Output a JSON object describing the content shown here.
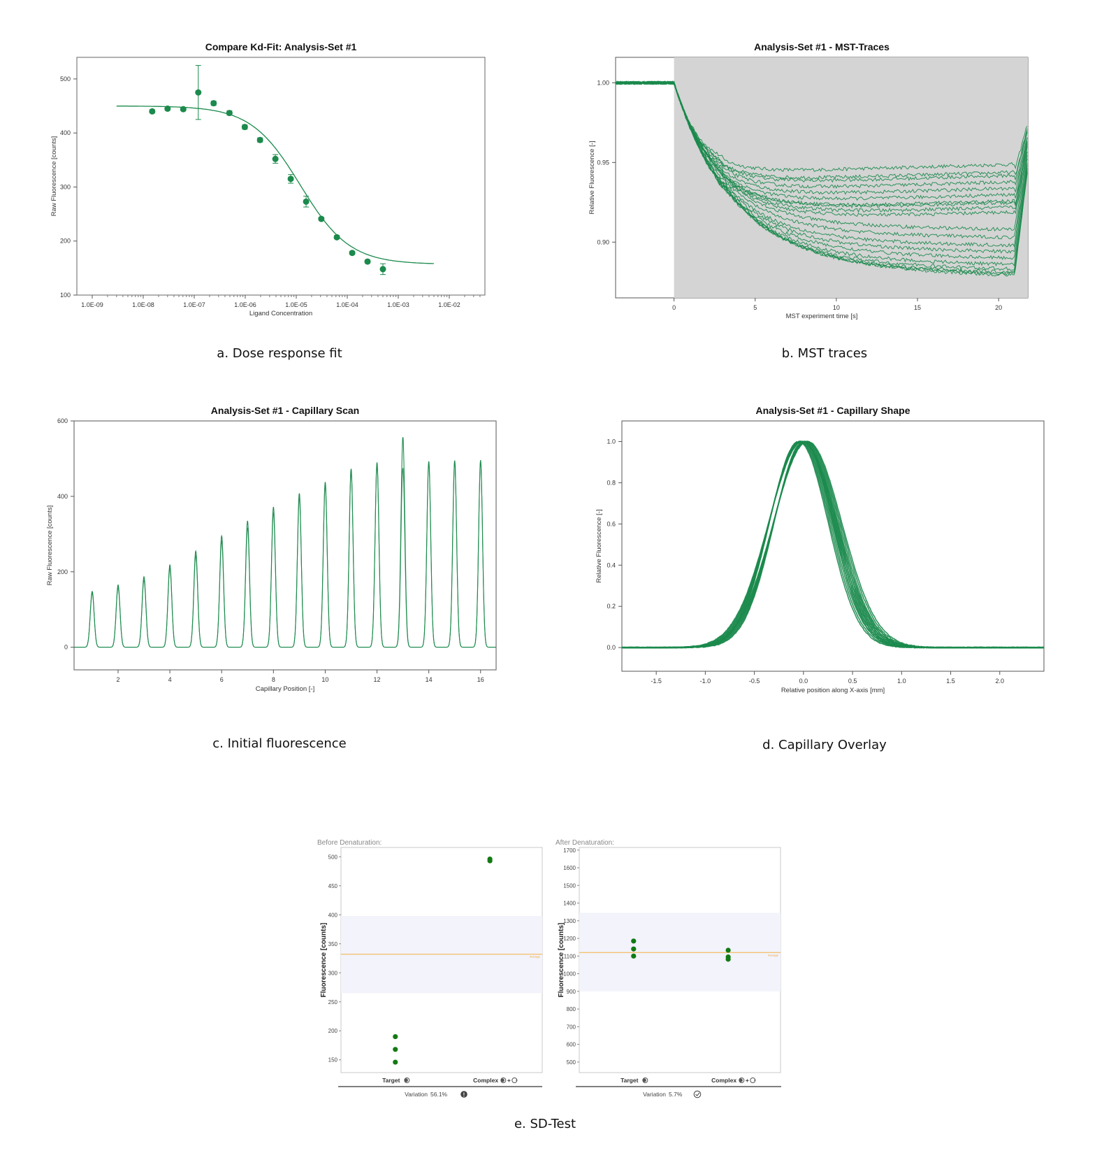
{
  "colors": {
    "green": "#1b8a4c",
    "dot_green": "#137a13",
    "band": "#f2f3fb",
    "avg_line": "#f5b041",
    "shade": "#d4d4d4"
  },
  "captions": {
    "a": "a. Dose response fit",
    "b": "b. MST traces",
    "c": "c. Initial fluorescence",
    "d": "d. Capillary Overlay",
    "e": "e. SD-Test"
  },
  "chart_data": [
    {
      "id": "a",
      "type": "scatter",
      "title": "Compare Kd-Fit: Analysis-Set #1",
      "xlabel": "Ligand Concentration",
      "ylabel": "Raw Fluorescence [counts]",
      "xscale": "log",
      "xlim": [
        5e-10,
        0.05
      ],
      "ylim": [
        100,
        540
      ],
      "xticks": [
        1e-09,
        1e-08,
        1e-07,
        1e-06,
        1e-05,
        0.0001,
        0.001,
        0.01
      ],
      "xtick_labels": [
        "1.0E-09",
        "1.0E-08",
        "1.0E-07",
        "1.0E-06",
        "1.0E-05",
        "1.0E-04",
        "1.0E-03",
        "1.0E-02"
      ],
      "yticks": [
        100,
        200,
        300,
        400,
        500
      ],
      "x": [
        1.5e-08,
        3e-08,
        6.1e-08,
        1.2e-07,
        2.4e-07,
        4.9e-07,
        9.8e-07,
        1.95e-06,
        3.9e-06,
        7.8e-06,
        1.56e-05,
        3.1e-05,
        6.25e-05,
        0.000125,
        0.00025,
        0.0005
      ],
      "y": [
        440,
        445,
        444,
        475,
        455,
        437,
        411,
        387,
        352,
        315,
        273,
        241,
        207,
        178,
        162,
        148
      ],
      "yerr": [
        3,
        3,
        3,
        50,
        4,
        4,
        4,
        4,
        8,
        8,
        10,
        3,
        3,
        3,
        3,
        10
      ],
      "fit": {
        "top": 450,
        "bottom": 157,
        "ec50": 1.2e-05,
        "hill": 0.9,
        "x_range": [
          3e-09,
          0.005
        ]
      },
      "grid": false
    },
    {
      "id": "b",
      "type": "line",
      "title": "Analysis-Set #1 - MST-Traces",
      "xlabel": "MST experiment time [s]",
      "ylabel": "Relative Fluorescence [-]",
      "xlim": [
        -3.6,
        21.8
      ],
      "ylim": [
        0.865,
        1.016
      ],
      "xticks": [
        0,
        5,
        10,
        15,
        20
      ],
      "yticks": [
        0.9,
        0.95,
        1.0
      ],
      "ytick_labels": [
        "0.90",
        "0.95",
        "1.00"
      ],
      "shaded_x_range": [
        0,
        21.8
      ],
      "ir_off_time": 21,
      "trace_min_values": [
        0.945,
        0.94,
        0.938,
        0.934,
        0.93,
        0.926,
        0.922,
        0.921,
        0.918,
        0.915,
        0.91,
        0.905,
        0.9,
        0.896,
        0.892,
        0.888,
        0.885,
        0.883,
        0.882,
        0.881
      ],
      "grid": false
    },
    {
      "id": "c",
      "type": "line",
      "title": "Analysis-Set #1 - Capillary Scan",
      "xlabel": "Capillary Position [-]",
      "ylabel": "Raw Fluorescence [counts]",
      "xlim": [
        0.3,
        16.6
      ],
      "ylim": [
        -60,
        600
      ],
      "xticks": [
        2,
        4,
        6,
        8,
        10,
        12,
        14,
        16
      ],
      "yticks": [
        0,
        200,
        400,
        600
      ],
      "capillary": [
        1,
        2,
        3,
        4,
        5,
        6,
        7,
        8,
        9,
        10,
        11,
        12,
        13,
        14,
        15,
        16
      ],
      "peak_scan1": [
        148,
        165,
        187,
        218,
        255,
        295,
        335,
        372,
        408,
        438,
        473,
        490,
        557,
        493,
        495,
        496
      ],
      "peak_scan2": [
        143,
        158,
        178,
        209,
        242,
        281,
        317,
        357,
        396,
        429,
        466,
        484,
        475,
        488,
        490,
        492
      ],
      "grid": false
    },
    {
      "id": "d",
      "type": "line",
      "title": "Analysis-Set #1 - Capillary Shape",
      "xlabel": "Relative position along X-axis [mm]",
      "ylabel": "Relative Fluorescence [-]",
      "xlim": [
        -1.85,
        2.45
      ],
      "ylim": [
        -0.115,
        1.1
      ],
      "xticks": [
        -1.5,
        -1.0,
        -0.5,
        0.0,
        0.5,
        1.0,
        1.5,
        2.0
      ],
      "xtick_labels": [
        "-1.5",
        "-1.0",
        "-0.5",
        "0.0",
        "0.5",
        "1.0",
        "1.5",
        "2.0"
      ],
      "yticks": [
        0.0,
        0.2,
        0.4,
        0.6,
        0.8,
        1.0
      ],
      "ytick_labels": [
        "0.0",
        "0.2",
        "0.4",
        "0.6",
        "0.8",
        "1.0"
      ],
      "peak_center": 0.0,
      "peak_height": 1.0,
      "grid": false
    },
    {
      "id": "e1",
      "type": "scatter",
      "header": "Before Denaturation:",
      "ylabel": "Fluorescence [counts]",
      "categories": [
        "Target",
        "Complex"
      ],
      "ylim": [
        128,
        516
      ],
      "yticks": [
        150,
        200,
        250,
        300,
        350,
        400,
        450,
        500
      ],
      "band": [
        265,
        398
      ],
      "average": 332,
      "average_label": "Average",
      "points": {
        "Target": [
          190,
          168,
          146
        ],
        "Complex": [
          496,
          493
        ]
      },
      "variation_label": "Variation",
      "variation": "56.1%",
      "grid": false
    },
    {
      "id": "e2",
      "type": "scatter",
      "header": "After Denaturation:",
      "ylabel": "Fluorescence [counts]",
      "categories": [
        "Target",
        "Complex"
      ],
      "ylim": [
        440,
        1715
      ],
      "yticks": [
        500,
        600,
        700,
        800,
        900,
        1000,
        1100,
        1200,
        1300,
        1400,
        1500,
        1600,
        1700
      ],
      "band": [
        900,
        1345
      ],
      "average": 1120,
      "average_label": "Average",
      "points": {
        "Target": [
          1185,
          1140,
          1100
        ],
        "Complex": [
          1133,
          1095,
          1082
        ]
      },
      "variation_label": "Variation",
      "variation": "5.7%",
      "grid": false
    }
  ]
}
